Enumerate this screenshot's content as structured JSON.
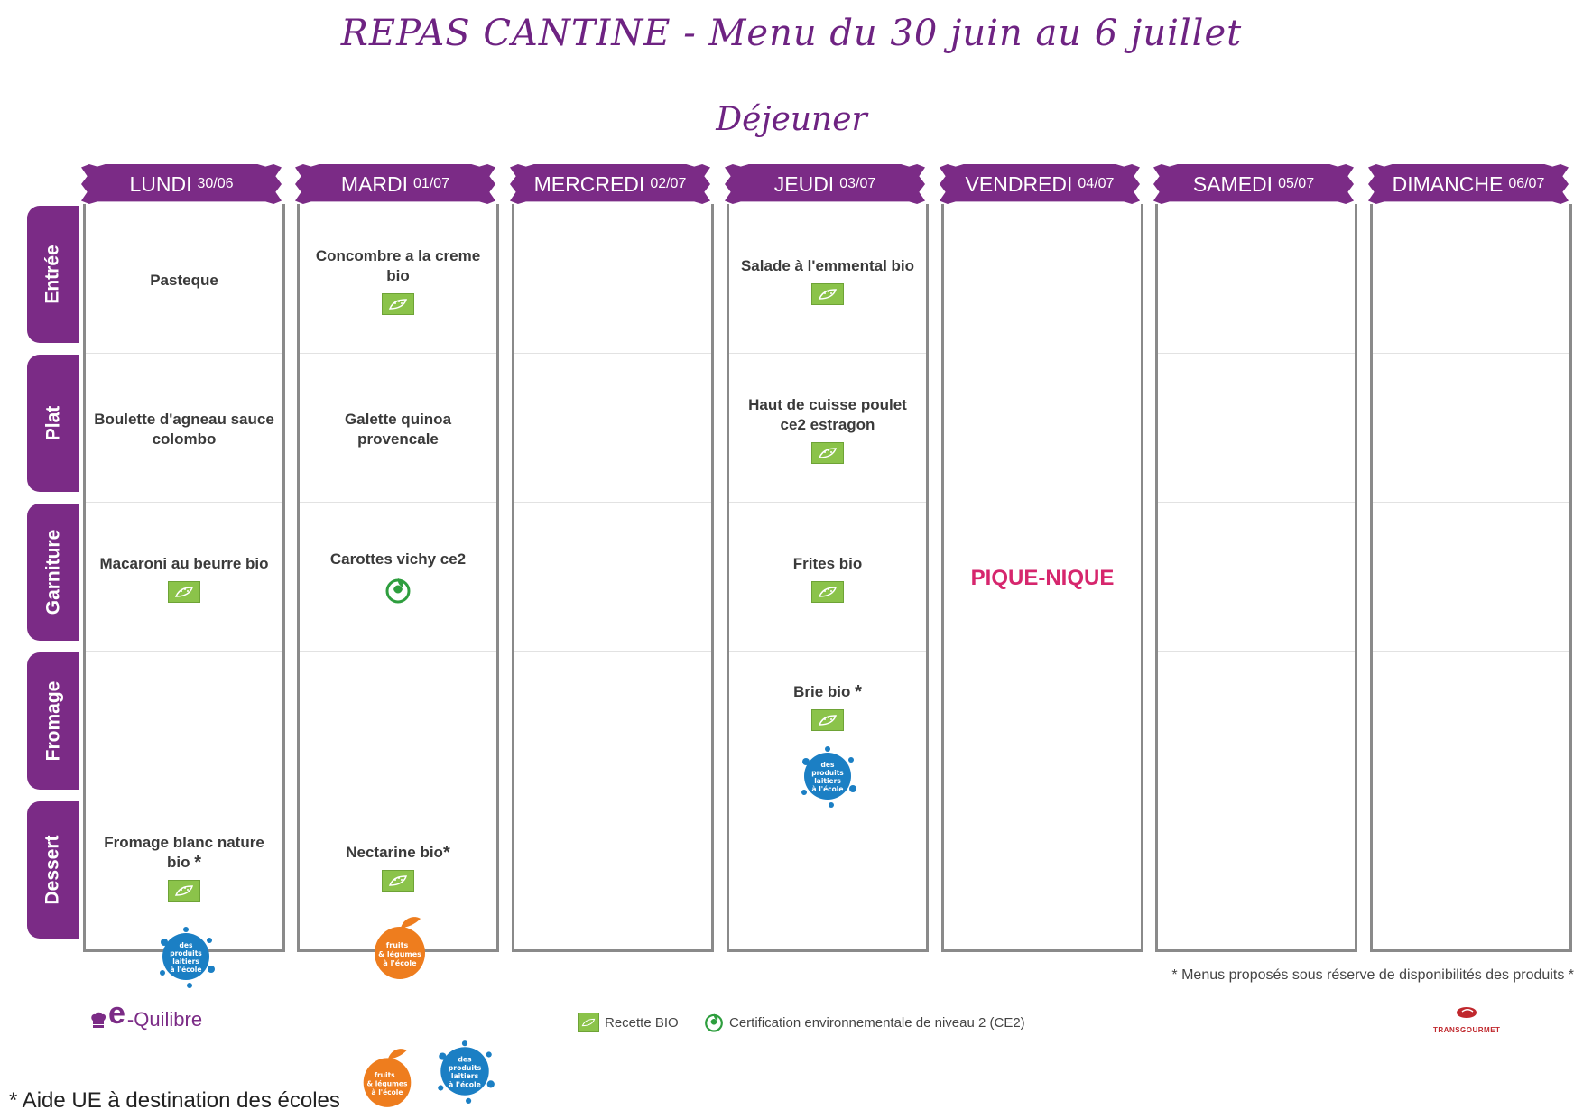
{
  "header": {
    "title": "REPAS CANTINE - Menu du 30 juin au 6 juillet",
    "subtitle": "Déjeuner"
  },
  "rows": [
    "Entrée",
    "Plat",
    "Garniture",
    "Fromage",
    "Dessert"
  ],
  "days": [
    {
      "name": "LUNDI",
      "date": "30/06"
    },
    {
      "name": "MARDI",
      "date": "01/07"
    },
    {
      "name": "MERCREDI",
      "date": "02/07"
    },
    {
      "name": "JEUDI",
      "date": "03/07"
    },
    {
      "name": "VENDREDI",
      "date": "04/07"
    },
    {
      "name": "SAMEDI",
      "date": "05/07"
    },
    {
      "name": "DIMANCHE",
      "date": "06/07"
    }
  ],
  "menu": {
    "lundi": {
      "entree": "Pasteque",
      "plat": "Boulette d'agneau sauce colombo",
      "garniture": "Macaroni au beurre bio",
      "dessert": "Fromage blanc nature bio"
    },
    "mardi": {
      "entree": "Concombre a la creme bio",
      "plat": "Galette quinoa provencale",
      "garniture": "Carottes vichy ce2",
      "dessert": "Nectarine bio"
    },
    "jeudi": {
      "entree": "Salade à l'emmental bio",
      "plat": "Haut de cuisse poulet ce2 estragon",
      "garniture": "Frites bio",
      "fromage": "Brie bio"
    },
    "vendredi": {
      "special": "PIQUE-NIQUE"
    }
  },
  "star": "*",
  "badges": {
    "dairy": [
      "des",
      "produits",
      "laitiers",
      "à l'école"
    ],
    "fruits": [
      "fruits",
      "& légumes",
      "à l'école"
    ]
  },
  "footer": {
    "disclaimer": "* Menus proposés sous réserve de disponibilités des produits *",
    "legend_bio": "Recette BIO",
    "legend_ce2": "Certification environnementale de niveau 2 (CE2)",
    "aide": "* Aide UE à destination des écoles",
    "logo_left_e": "e",
    "logo_left_rest": "-Quilibre",
    "logo_right": "TRANSGOURMET"
  },
  "colors": {
    "purple": "#7b2b86",
    "pink": "#d6266d",
    "bio_green": "#8bc34a",
    "dairy_blue": "#1b7fc4",
    "fruit_orange": "#ee7d1e"
  }
}
